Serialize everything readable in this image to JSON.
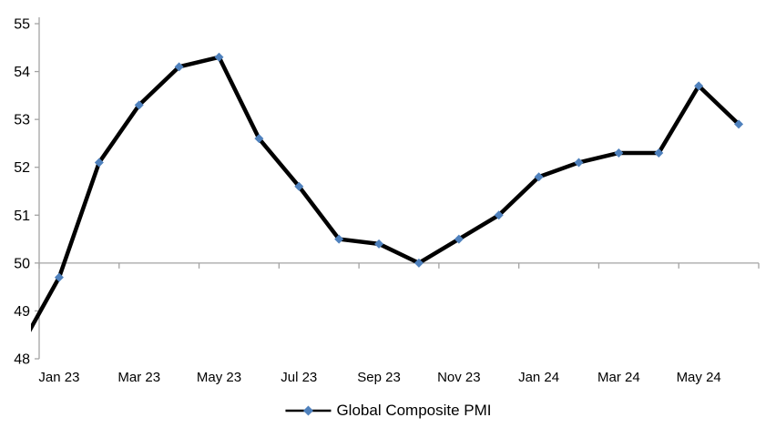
{
  "chart_data": {
    "type": "line",
    "title": "",
    "legend": {
      "label": "Global Composite PMI",
      "position": "bottom-center"
    },
    "categories": [
      "Dec 22",
      "Jan 23",
      "Feb 23",
      "Mar 23",
      "Apr 23",
      "May 23",
      "Jun 23",
      "Jul 23",
      "Aug 23",
      "Sep 23",
      "Oct 23",
      "Nov 23",
      "Dec 23",
      "Jan 24",
      "Feb 24",
      "Mar 24",
      "Apr 24",
      "May 24",
      "Jun 24"
    ],
    "values": [
      48.2,
      49.7,
      52.1,
      53.3,
      54.1,
      54.3,
      52.6,
      51.6,
      50.5,
      50.4,
      50.0,
      50.5,
      51.0,
      51.8,
      52.1,
      52.3,
      52.3,
      53.7,
      52.9
    ],
    "first_point_clipped": true,
    "x_tick_labels": [
      "Jan 23",
      "Mar 23",
      "May 23",
      "Jul 23",
      "Sep 23",
      "Nov 23",
      "Jan 24",
      "Mar 24",
      "May 24"
    ],
    "x_label_every_n_categories": 2,
    "y_ticks": [
      48,
      49,
      50,
      51,
      52,
      53,
      54,
      55
    ],
    "ylim": [
      48,
      55
    ],
    "x_axis_cross_value": 50,
    "grid": false,
    "colors": {
      "line": "#000000",
      "marker": "#4F81BD",
      "axis": "#A3A3A3",
      "text": "#000000",
      "background": "#FFFFFF"
    }
  }
}
